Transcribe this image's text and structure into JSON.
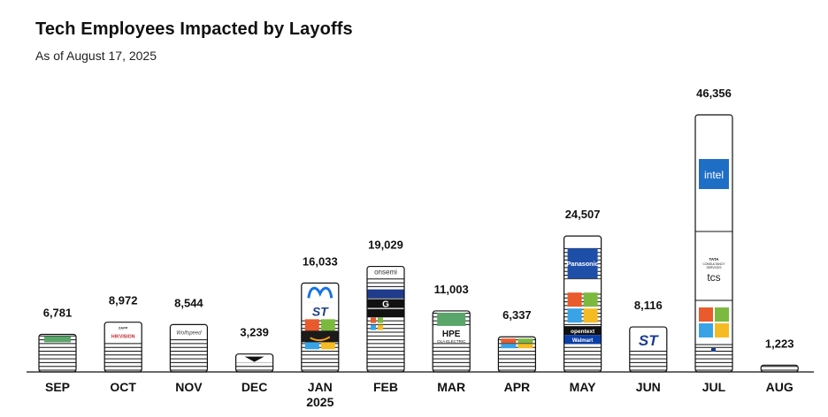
{
  "header": {
    "title": "Tech Employees Impacted by Layoffs",
    "subtitle": "As of August 17, 2025"
  },
  "chart_data": {
    "type": "bar",
    "title": "Tech Employees Impacted by Layoffs",
    "subtitle": "As of August 17, 2025",
    "categories": [
      "SEP",
      "OCT",
      "NOV",
      "DEC",
      "JAN",
      "FEB",
      "MAR",
      "APR",
      "MAY",
      "JUN",
      "JUL",
      "AUG"
    ],
    "category_sublabels": [
      "",
      "",
      "",
      "",
      "2025",
      "",
      "",
      "",
      "",
      "",
      "",
      ""
    ],
    "values": [
      6781,
      8972,
      8544,
      3239,
      16033,
      19029,
      11003,
      6337,
      24507,
      8116,
      46356,
      1223
    ],
    "value_labels": [
      "6,781",
      "8,972",
      "8,544",
      "3,239",
      "16,033",
      "19,029",
      "11,003",
      "6,337",
      "24,507",
      "8,116",
      "46,356",
      "1,223"
    ],
    "ylim": [
      0,
      46356
    ],
    "grid": false,
    "legend": "none",
    "logo_labels": {
      "OCT": [
        "HIKVISION",
        "ZAPP"
      ],
      "NOV": [
        "Wolfspeed"
      ],
      "FEB": [
        "onsemi",
        "a"
      ],
      "MAR": [
        "HPE",
        "OLA ELECTRIC"
      ],
      "MAY": [
        "Panasonic",
        "opentext",
        "Walmart"
      ],
      "JUN": [
        "ST"
      ],
      "JUL": [
        "intel",
        "TATA CONSULTANCY SERVICES",
        "tcs"
      ]
    },
    "colors": {
      "bar_outline": "#111111",
      "stripe": "#111111",
      "intel": "#1f6ec6",
      "panasonic": "#1e4fa8",
      "ms_red": "#e95a2d",
      "ms_green": "#7cb93f",
      "ms_blue": "#3aa3e6",
      "ms_yellow": "#f5bb22",
      "meta_blue": "#1771e6",
      "green_logo": "#5aa56a"
    }
  }
}
